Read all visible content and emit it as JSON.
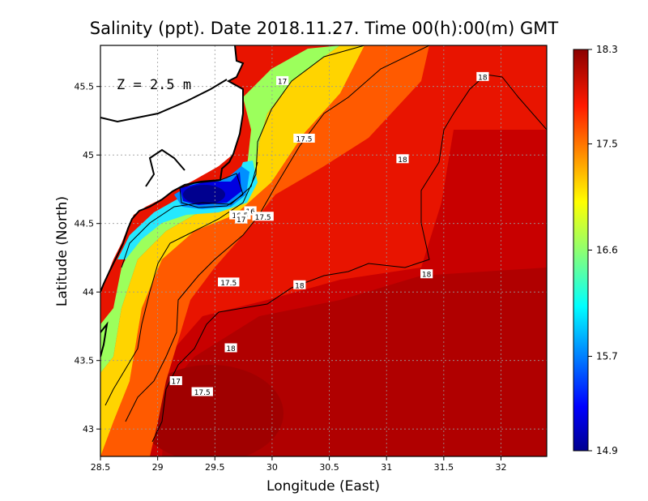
{
  "title": "Salinity (ppt). Date 2018.11.27. Time 00(h):00(m) GMT",
  "depth_label": "Z = 2.5 m",
  "x_axis_label": "Longitude (East)",
  "y_axis_label": "Latitude (North)",
  "x_ticks": [
    "28.5",
    "29",
    "29.5",
    "30",
    "30.5",
    "31",
    "31.5",
    "32"
  ],
  "y_ticks": [
    "45.5",
    "45",
    "44.5",
    "44",
    "43.5",
    "43"
  ],
  "colorbar_ticks": [
    "18.3",
    "17.5",
    "16.6",
    "15.7",
    "14.9"
  ],
  "contour_labels": [
    {
      "text": "17",
      "lon": 30.09,
      "lat": 45.54
    },
    {
      "text": "17.5",
      "lon": 30.28,
      "lat": 45.12
    },
    {
      "text": "18",
      "lon": 31.84,
      "lat": 45.57
    },
    {
      "text": "18",
      "lon": 31.14,
      "lat": 44.97
    },
    {
      "text": "16",
      "lon": 29.81,
      "lat": 44.59
    },
    {
      "text": "16.5",
      "lon": 29.72,
      "lat": 44.56
    },
    {
      "text": "17",
      "lon": 29.73,
      "lat": 44.53
    },
    {
      "text": "17.5",
      "lon": 29.92,
      "lat": 44.55
    },
    {
      "text": "17.5",
      "lon": 29.62,
      "lat": 44.07
    },
    {
      "text": "18",
      "lon": 30.24,
      "lat": 44.05
    },
    {
      "text": "18",
      "lon": 31.35,
      "lat": 44.13
    },
    {
      "text": "18",
      "lon": 29.64,
      "lat": 43.59
    },
    {
      "text": "17",
      "lon": 29.16,
      "lat": 43.35
    },
    {
      "text": "17.5",
      "lon": 29.39,
      "lat": 43.27
    }
  ],
  "chart_data": {
    "type": "heatmap",
    "title": "Salinity (ppt). Date 2018.11.27. Time 00(h):00(m) GMT",
    "xlabel": "Longitude (East)",
    "ylabel": "Latitude (North)",
    "xlim": [
      28.5,
      32.4
    ],
    "ylim": [
      42.8,
      45.8
    ],
    "colorbar": {
      "min": 14.9,
      "max": 18.3,
      "ticks": [
        18.3,
        17.5,
        16.6,
        15.7,
        14.9
      ],
      "colormap": "jet"
    },
    "contour_levels": [
      16,
      16.5,
      17,
      17.5,
      18
    ],
    "grid": true,
    "depth": "Z = 2.5 m",
    "colors": {
      "low": "#00008f",
      "mid": "#8fff70",
      "high": "#8b0000",
      "grid": "#aaaaaa"
    }
  }
}
